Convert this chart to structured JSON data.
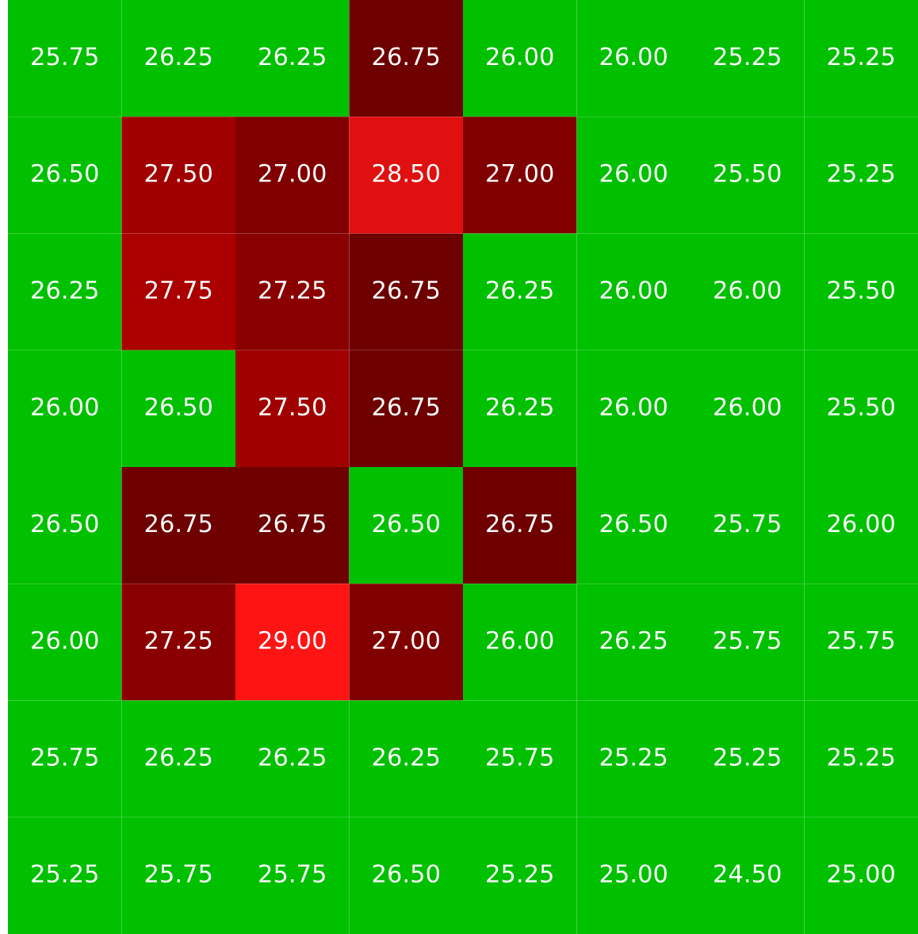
{
  "chart_data": {
    "type": "heatmap",
    "categories": [
      null,
      null,
      null,
      null,
      null,
      null,
      null,
      null
    ],
    "y_categories": [
      null,
      null,
      null,
      null,
      null,
      null,
      null,
      null
    ],
    "cells": [
      [
        25.75,
        26.25,
        26.25,
        26.75,
        26.0,
        26.0,
        25.25,
        25.25
      ],
      [
        26.5,
        27.5,
        27.0,
        28.5,
        27.0,
        26.0,
        25.5,
        25.25
      ],
      [
        26.25,
        27.75,
        27.25,
        26.75,
        26.25,
        26.0,
        26.0,
        25.5
      ],
      [
        26.0,
        26.5,
        27.5,
        26.75,
        26.25,
        26.0,
        26.0,
        25.5
      ],
      [
        26.5,
        26.75,
        26.75,
        26.5,
        26.75,
        26.5,
        25.75,
        26.0
      ],
      [
        26.0,
        27.25,
        29.0,
        27.0,
        26.0,
        26.25,
        25.75,
        25.75
      ],
      [
        25.75,
        26.25,
        26.25,
        26.25,
        25.75,
        25.25,
        25.25,
        25.25
      ],
      [
        25.25,
        25.75,
        25.75,
        26.5,
        25.25,
        25.0,
        24.5,
        25.0
      ]
    ],
    "cell_labels": [
      [
        "25.75",
        "26.25",
        "26.25",
        "26.75",
        "26.00",
        "26.00",
        "25.25",
        "25.25"
      ],
      [
        "26.50",
        "27.50",
        "27.00",
        "28.50",
        "27.00",
        "26.00",
        "25.50",
        "25.25"
      ],
      [
        "26.25",
        "27.75",
        "27.25",
        "26.75",
        "26.25",
        "26.00",
        "26.00",
        "25.50"
      ],
      [
        "26.00",
        "26.50",
        "27.50",
        "26.75",
        "26.25",
        "26.00",
        "26.00",
        "25.50"
      ],
      [
        "26.50",
        "26.75",
        "26.75",
        "26.50",
        "26.75",
        "26.50",
        "25.75",
        "26.00"
      ],
      [
        "26.00",
        "27.25",
        "29.00",
        "27.00",
        "26.00",
        "26.25",
        "25.75",
        "25.75"
      ],
      [
        "25.75",
        "26.25",
        "26.25",
        "26.25",
        "25.75",
        "25.25",
        "25.25",
        "25.25"
      ],
      [
        "25.25",
        "25.75",
        "25.75",
        "26.50",
        "25.25",
        "25.00",
        "24.50",
        "25.00"
      ]
    ],
    "colors": [
      "#00c000",
      "#00c000",
      "#00c000",
      "#00c000",
      "#00c000",
      "#00c000",
      "#00c000",
      "#00c000",
      "#6e0000",
      "#800000",
      "#8a0000",
      "#a00000",
      "#aa0000",
      "#e01010",
      "#ff1414"
    ]
  }
}
